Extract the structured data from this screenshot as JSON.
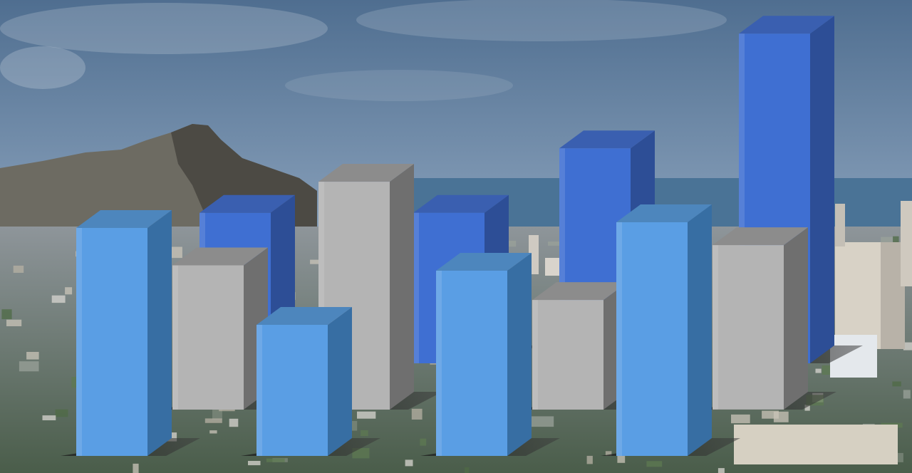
{
  "colors": {
    "sky_top": "#4f6e90",
    "sky_mid": "#8fa6bf",
    "horizon": "#5a7a92",
    "ocean": "#4a7396",
    "city_light": "#8e959a",
    "city_dark": "#4a5d4a",
    "mountain": "#6d6b62",
    "mountain_shadow": "#4c4a44",
    "series": [
      "#5a9ee4",
      "#b4b4b4",
      "#3f6fd2"
    ],
    "series_top": [
      "#4d86bd",
      "#8c8c8c",
      "#3a5fb0"
    ],
    "series_side": [
      "#376ea3",
      "#6f6f6f",
      "#2d4e96"
    ]
  },
  "chart_data": {
    "type": "bar",
    "style": "3d-clustered-depth",
    "title": "",
    "xlabel": "",
    "ylabel": "",
    "categories": [
      "",
      "",
      "",
      ""
    ],
    "ylim": [
      0,
      100
    ],
    "grid": false,
    "legend": "none",
    "series": [
      {
        "values": [
          80,
          46,
          65,
          82
        ]
      },
      {
        "values": [
          50,
          79,
          38,
          57
        ]
      },
      {
        "values": [
          42,
          42,
          60,
          92
        ]
      }
    ]
  }
}
